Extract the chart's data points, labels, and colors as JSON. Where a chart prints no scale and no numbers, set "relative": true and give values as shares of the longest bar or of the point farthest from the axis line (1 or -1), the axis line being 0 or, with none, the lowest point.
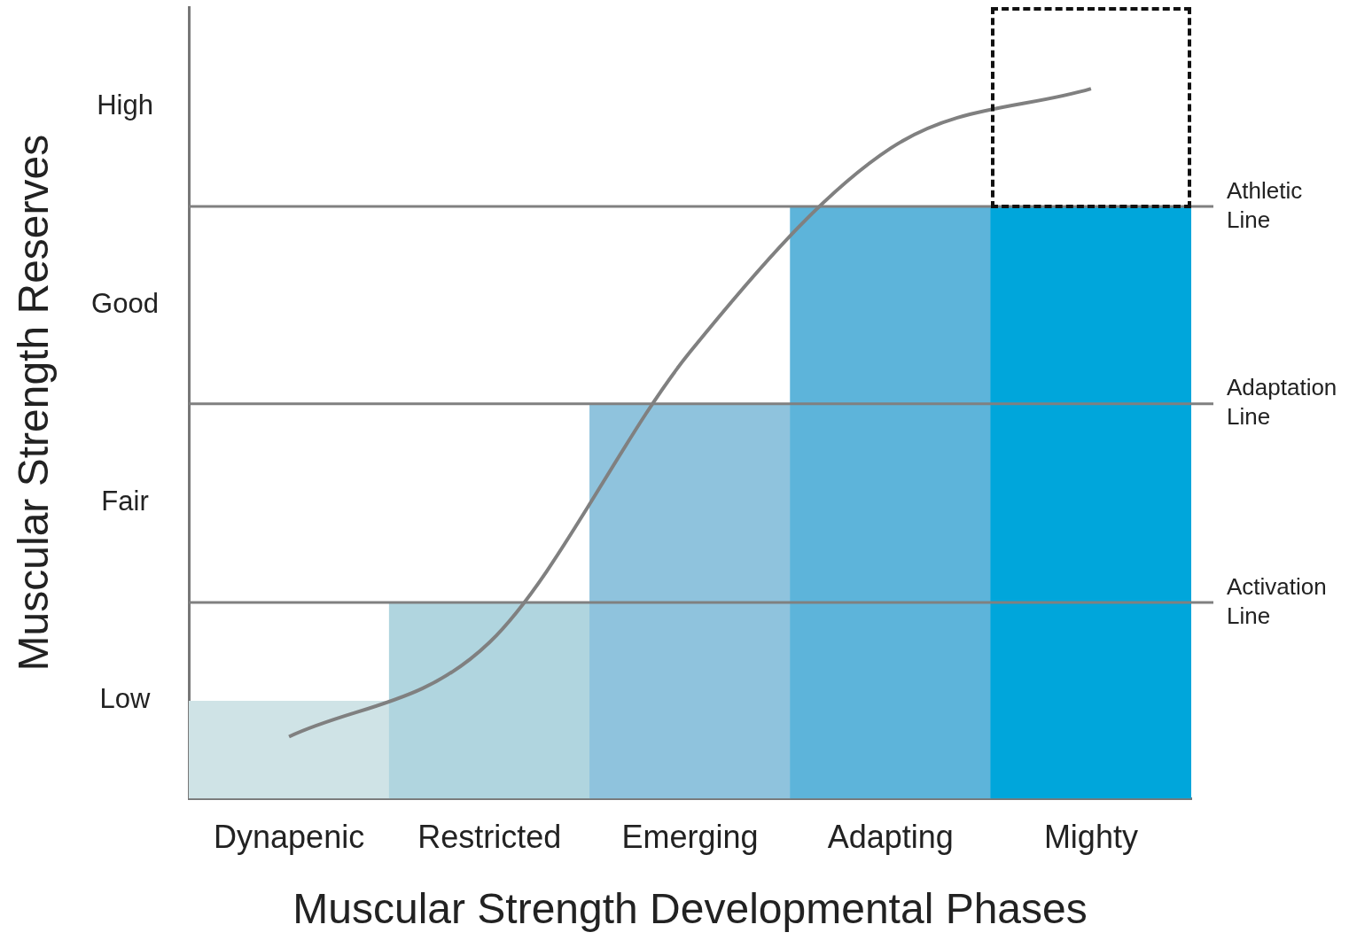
{
  "chart_data": {
    "type": "bar",
    "relative": true,
    "xlabel": "Muscular Strength Developmental Phases",
    "ylabel": "Muscular Strength Reserves",
    "categories": [
      "Dynapenic",
      "Restricted",
      "Emerging",
      "Adapting",
      "Mighty"
    ],
    "series": [
      {
        "colors": [
          "#cfe3e6",
          "#b0d5df",
          "#8fc3dd",
          "#5db4da",
          "#00a6db"
        ],
        "values": [
          0.137,
          0.276,
          0.556,
          0.834,
          0.834
        ]
      },
      {
        "type": "line",
        "color": "#808080",
        "values": [
          0.087,
          0.22,
          0.629,
          0.916,
          1
        ]
      }
    ],
    "annotations": [
      "Low",
      "Fair",
      "Good",
      "High"
    ],
    "ref_lines": [
      {
        "axis": "y",
        "value": 0.276,
        "label": "Activation Line",
        "color": "#808080"
      },
      {
        "axis": "y",
        "value": 0.556,
        "label": "Adaptation Line",
        "color": "#808080"
      },
      {
        "axis": "y",
        "value": 0.834,
        "label": "Athletic Line",
        "color": "#808080"
      }
    ],
    "grid": false,
    "legend": false,
    "marker": "none",
    "line_style": "solid"
  }
}
